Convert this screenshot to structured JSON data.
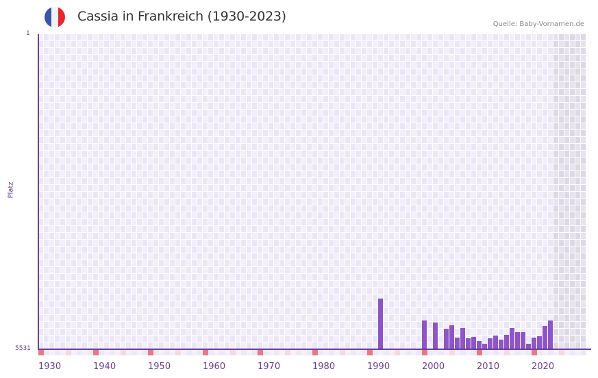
{
  "header": {
    "title": "Cassia in Frankreich (1930-2023)",
    "source": "Quelle: Baby-Vornamen.de",
    "flag_colors": [
      "#3a55a4",
      "#f2f2f2",
      "#e8262f"
    ]
  },
  "colors": {
    "bar": "#8e55c7",
    "axis": "#6a3d9a",
    "grid_a": "#f2eefb",
    "grid_b": "#ebe6f7",
    "future_a": "#e6e2ee",
    "future_b": "#ddd8e8",
    "marker_decade": "#e57a83",
    "marker_half": "#f5d9e0"
  },
  "chart_data": {
    "type": "bar",
    "title": "Cassia in Frankreich (1930-2023)",
    "xlabel": "",
    "ylabel": "Platz",
    "y_inverted": true,
    "ylim": [
      1,
      5531
    ],
    "y_ticks": [
      "1",
      "5531"
    ],
    "x_range": [
      1930,
      2029
    ],
    "x_ticks": [
      "1930",
      "1940",
      "1950",
      "1960",
      "1970",
      "1980",
      "1990",
      "2000",
      "2010",
      "2020"
    ],
    "grid": true,
    "future_shaded_from": 2024,
    "categories": [
      1992,
      2000,
      2002,
      2004,
      2005,
      2006,
      2007,
      2008,
      2009,
      2010,
      2011,
      2012,
      2013,
      2014,
      2015,
      2016,
      2017,
      2018,
      2019,
      2020,
      2021,
      2022,
      2023
    ],
    "values": [
      4641,
      5026,
      5062,
      5170,
      5110,
      5327,
      5158,
      5339,
      5315,
      5387,
      5435,
      5339,
      5291,
      5363,
      5279,
      5158,
      5230,
      5230,
      5435,
      5327,
      5303,
      5122,
      5026
    ]
  },
  "axis": {
    "y_top": "1",
    "y_bottom": "5531",
    "y_label": "Platz"
  }
}
